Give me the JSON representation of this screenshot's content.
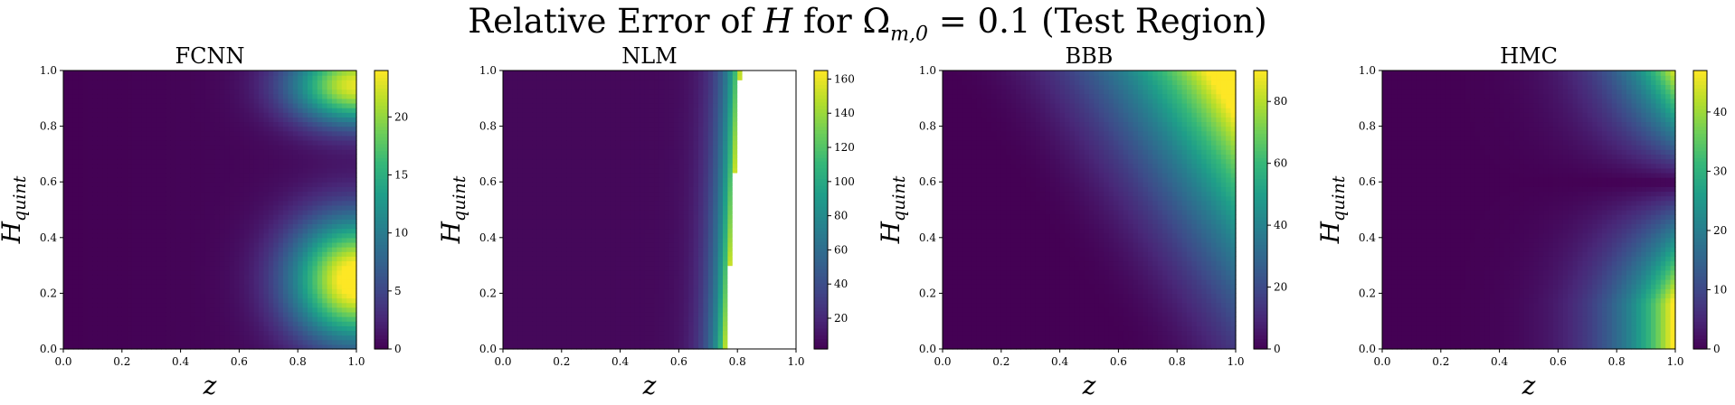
{
  "suptitle": {
    "pre": "Relative Error of ",
    "var": "H",
    "mid": " for ",
    "omega": "Ω",
    "sub": "m,0",
    "post": " = 0.1 (Test Region)"
  },
  "colors": {
    "colormap": "viridis",
    "nan": "#ffffff"
  },
  "chart_data": [
    {
      "type": "heatmap",
      "title": "FCNN",
      "xlabel": "z",
      "ylabel": "H_quint",
      "xlim": [
        0.0,
        1.0
      ],
      "ylim": [
        0.0,
        1.0
      ],
      "xticks": [
        "0.0",
        "0.2",
        "0.4",
        "0.6",
        "0.8",
        "1.0"
      ],
      "yticks": [
        "0.0",
        "0.2",
        "0.4",
        "0.6",
        "0.8",
        "1.0"
      ],
      "colorbar": {
        "vmin": 0,
        "vmax": 24,
        "ticks": [
          0,
          5,
          10,
          15,
          20
        ]
      },
      "description_values": {
        "max_value_location": {
          "z": 1.0,
          "H_quint": 0.25,
          "value": 24
        },
        "secondary_max": {
          "z": 1.0,
          "H_quint": 0.92,
          "value": 22
        },
        "minimum_band": {
          "H_quint": 0.68,
          "value": 0
        }
      }
    },
    {
      "type": "heatmap",
      "title": "NLM",
      "xlabel": "z",
      "ylabel": "H_quint",
      "xlim": [
        0.0,
        1.0
      ],
      "ylim": [
        0.0,
        1.0
      ],
      "xticks": [
        "0.0",
        "0.2",
        "0.4",
        "0.6",
        "0.8",
        "1.0"
      ],
      "yticks": [
        "0.0",
        "0.2",
        "0.4",
        "0.6",
        "0.8",
        "1.0"
      ],
      "colorbar": {
        "vmin": 2,
        "vmax": 165,
        "ticks": [
          20,
          40,
          60,
          80,
          100,
          120,
          140,
          160
        ]
      },
      "description_values": {
        "nan_region_start_z": [
          0.76,
          0.81
        ],
        "max_value": 165
      }
    },
    {
      "type": "heatmap",
      "title": "BBB",
      "xlabel": "z",
      "ylabel": "H_quint",
      "xlim": [
        0.0,
        1.0
      ],
      "ylim": [
        0.0,
        1.0
      ],
      "xticks": [
        "0.0",
        "0.2",
        "0.4",
        "0.6",
        "0.8",
        "1.0"
      ],
      "yticks": [
        "0.0",
        "0.2",
        "0.4",
        "0.6",
        "0.8",
        "1.0"
      ],
      "colorbar": {
        "vmin": 0,
        "vmax": 90,
        "ticks": [
          0,
          20,
          40,
          60,
          80
        ]
      },
      "description_values": {
        "max_value_location": {
          "z": 1.0,
          "H_quint": 1.0,
          "value": 90
        }
      }
    },
    {
      "type": "heatmap",
      "title": "HMC",
      "xlabel": "z",
      "ylabel": "H_quint",
      "xlim": [
        0.0,
        1.0
      ],
      "ylim": [
        0.0,
        1.0
      ],
      "xticks": [
        "0.0",
        "0.2",
        "0.4",
        "0.6",
        "0.8",
        "1.0"
      ],
      "yticks": [
        "0.0",
        "0.2",
        "0.4",
        "0.6",
        "0.8",
        "1.0"
      ],
      "colorbar": {
        "vmin": 0,
        "vmax": 47,
        "ticks": [
          0,
          10,
          20,
          30,
          40
        ]
      },
      "description_values": {
        "max_value_location": {
          "z": 1.0,
          "H_quint": 0.95,
          "value": 47
        },
        "minimum_band": {
          "H_quint": 0.6,
          "value": 0
        }
      }
    }
  ]
}
